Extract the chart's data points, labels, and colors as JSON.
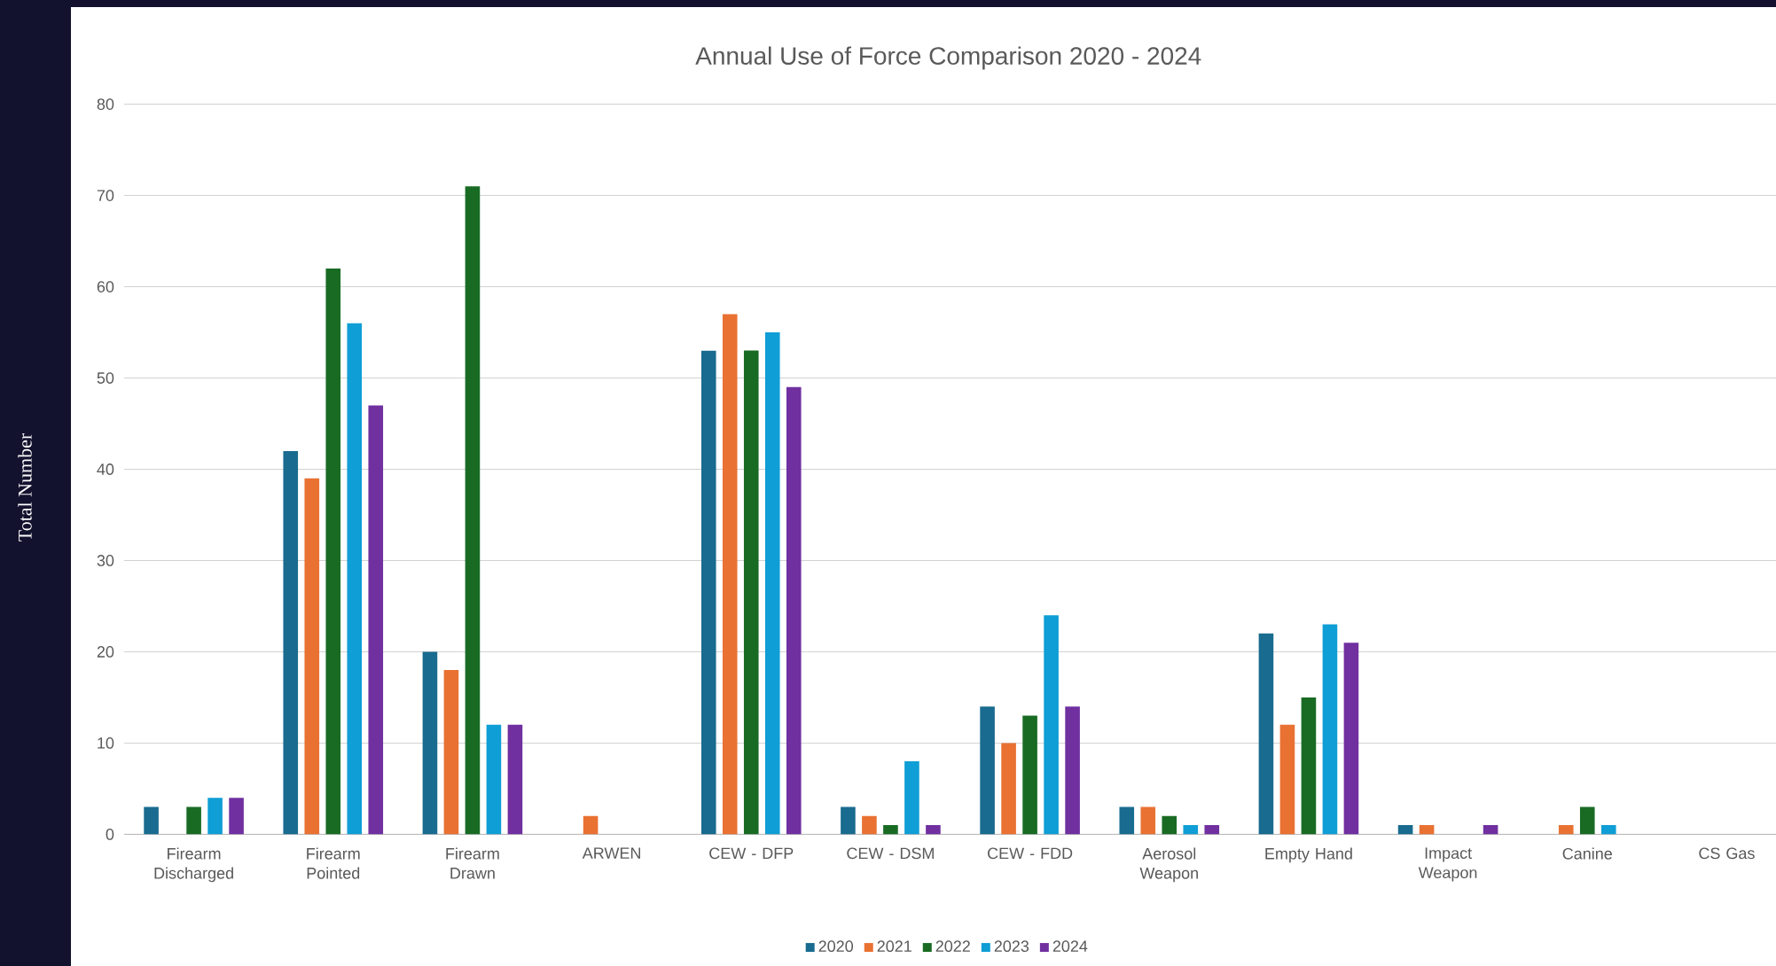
{
  "chart_data": {
    "type": "bar",
    "title": "Annual Use of Force Comparison 2020 - 2024",
    "ylabel": "Total  Number",
    "categories": [
      "Firearm Discharged",
      "Firearm Pointed",
      "Firearm Drawn",
      "ARWEN",
      "CEW - DFP",
      "CEW - DSM",
      "CEW - FDD",
      "Aerosol Weapon",
      "Empty Hand",
      "Impact Weapon",
      "Canine",
      "CS Gas"
    ],
    "series": [
      {
        "name": "2020",
        "color": "#196b8f",
        "values": [
          3,
          42,
          20,
          0,
          53,
          3,
          14,
          3,
          22,
          1,
          0,
          0
        ]
      },
      {
        "name": "2021",
        "color": "#e97132",
        "values": [
          0,
          39,
          18,
          2,
          57,
          2,
          10,
          3,
          12,
          1,
          1,
          0
        ]
      },
      {
        "name": "2022",
        "color": "#196b24",
        "values": [
          3,
          62,
          71,
          0,
          53,
          1,
          13,
          2,
          15,
          0,
          3,
          0
        ]
      },
      {
        "name": "2023",
        "color": "#0f9ed5",
        "values": [
          4,
          56,
          12,
          0,
          55,
          8,
          24,
          1,
          23,
          0,
          1,
          0
        ]
      },
      {
        "name": "2024",
        "color": "#7030a0",
        "values": [
          4,
          47,
          12,
          0,
          49,
          1,
          14,
          1,
          21,
          1,
          0,
          0
        ]
      }
    ],
    "ylim": [
      0,
      80
    ],
    "yticks": [
      0,
      10,
      20,
      30,
      40,
      50,
      60,
      70,
      80
    ],
    "grid": "y",
    "legend": "bottom"
  }
}
